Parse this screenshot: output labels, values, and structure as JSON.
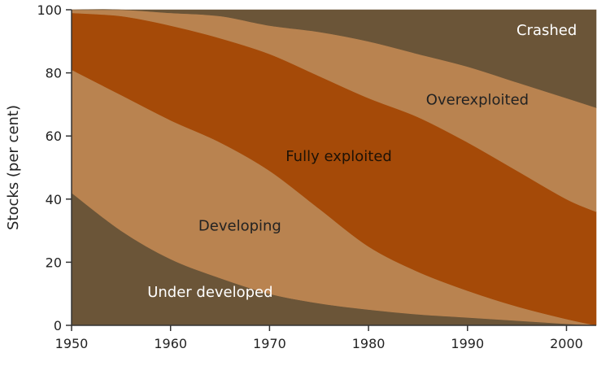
{
  "chart_data": {
    "type": "area",
    "ylabel": "Stocks (per cent)",
    "xlim": [
      1950,
      2003
    ],
    "ylim": [
      0,
      100
    ],
    "x_ticks": [
      1950,
      1960,
      1970,
      1980,
      1990,
      2000
    ],
    "y_ticks": [
      0,
      20,
      40,
      60,
      80,
      100
    ],
    "grid": false,
    "colors": {
      "background": "#ffffff",
      "axis": "#333333"
    },
    "x": [
      1950,
      1955,
      1960,
      1965,
      1970,
      1975,
      1980,
      1985,
      1990,
      1995,
      2000,
      2003
    ],
    "boundaries": {
      "under_developed_top": [
        42,
        30,
        21,
        15,
        10,
        7,
        5,
        3.5,
        2.5,
        1.5,
        0.5,
        0
      ],
      "developing_top": [
        81,
        73,
        65,
        58,
        49,
        37,
        25,
        17,
        11,
        6,
        2,
        0
      ],
      "fully_exploited_top": [
        99,
        98,
        95,
        91,
        86,
        79,
        72,
        66,
        58,
        49,
        40,
        36
      ],
      "overexploited_top": [
        100,
        100,
        99,
        98,
        95,
        93,
        90,
        86,
        82,
        77,
        72,
        69
      ]
    },
    "series": [
      {
        "name": "Under developed",
        "color": "#6b5538",
        "label_color": "#ffffff",
        "label_at": {
          "x": 1964,
          "y": 9
        }
      },
      {
        "name": "Developing",
        "color": "#b98350",
        "label_color": "#222222",
        "label_at": {
          "x": 1967,
          "y": 30
        }
      },
      {
        "name": "Fully exploited",
        "color": "#a54a08",
        "label_color": "#1e1206",
        "label_at": {
          "x": 1977,
          "y": 52
        }
      },
      {
        "name": "Overexploited",
        "color": "#b98350",
        "label_color": "#222222",
        "label_at": {
          "x": 1991,
          "y": 70
        }
      },
      {
        "name": "Crashed",
        "color": "#6b5538",
        "label_color": "#ffffff",
        "label_at": {
          "x": 1998,
          "y": 92
        }
      }
    ]
  }
}
